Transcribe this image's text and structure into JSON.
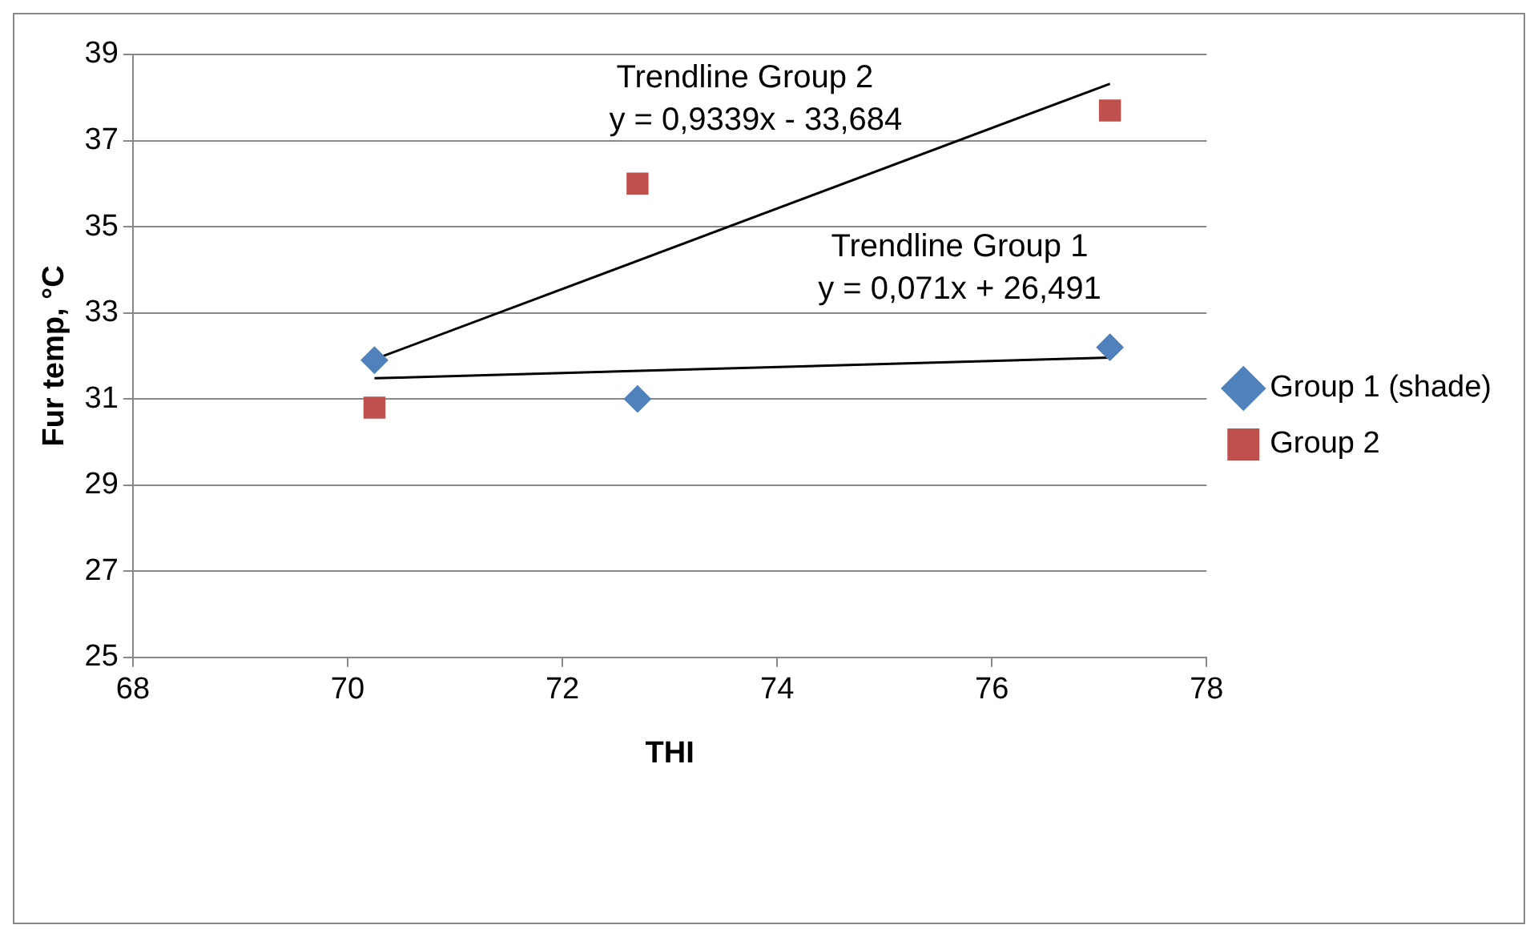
{
  "chart_data": {
    "type": "scatter",
    "xlabel": "THI",
    "ylabel": "Fur temp, °C",
    "xlim": [
      68,
      78
    ],
    "xticks": [
      68,
      70,
      72,
      74,
      76,
      78
    ],
    "ylim": [
      25,
      39
    ],
    "yticks": [
      25,
      27,
      29,
      31,
      33,
      35,
      37,
      39
    ],
    "grid": "y",
    "legend": "right",
    "series": [
      {
        "name": "Group 1 (shade)",
        "color": "#4f81bd",
        "marker": "diamond",
        "x": [
          70.25,
          72.7,
          77.1
        ],
        "values": [
          31.9,
          31.0,
          32.2
        ]
      },
      {
        "name": "Group 2",
        "color": "#c0504d",
        "marker": "square",
        "x": [
          70.25,
          72.7,
          77.1
        ],
        "values": [
          30.8,
          36.0,
          37.7
        ]
      },
      {
        "type": "line",
        "color": "#000000",
        "marker": "none",
        "x": [
          70.25,
          77.1
        ],
        "values": [
          31.48,
          31.96
        ]
      },
      {
        "type": "line",
        "color": "#000000",
        "marker": "none",
        "x": [
          70.25,
          77.1
        ],
        "values": [
          31.92,
          38.32
        ]
      }
    ],
    "annotations": [
      "Trendline Group 2",
      "y = 0,9339x - 33,684",
      "Trendline Group 1",
      "y = 0,071x + 26,491"
    ]
  }
}
